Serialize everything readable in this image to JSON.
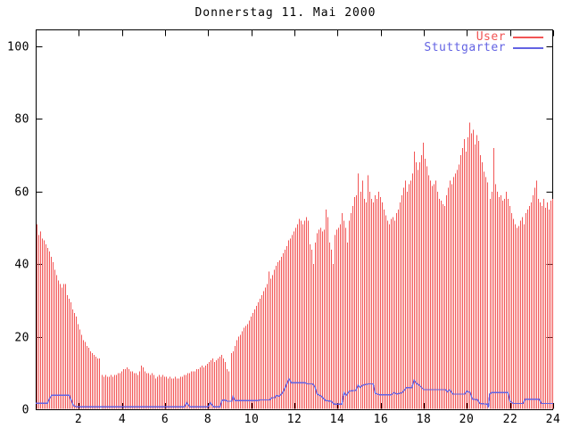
{
  "window": {
    "title": "Donnerstag 11. Mai 2000"
  },
  "colors": {
    "background": "#ffffff",
    "border": "#000000",
    "user_red": "#f25555",
    "stuttgarter_blue": "#6363e3",
    "text": "#000000"
  },
  "chart_data": {
    "type": "bar",
    "title": "Donnerstag 11. Mai 2000",
    "xlabel": "",
    "ylabel": "",
    "grid": false,
    "legend_position": "top-right-inside",
    "x_axis": {
      "min": 0,
      "max": 24,
      "tick_values": [
        2,
        4,
        6,
        8,
        10,
        12,
        14,
        16,
        18,
        20,
        22,
        24
      ],
      "tick_labels": [
        "2",
        "4",
        "6",
        "8",
        "10",
        "12",
        "14",
        "16",
        "18",
        "20",
        "22",
        "24"
      ]
    },
    "y_axis": {
      "min": 0,
      "max": 100,
      "tick_values": [
        0,
        20,
        40,
        60,
        80,
        100
      ],
      "tick_labels": [
        "0",
        "20",
        "40",
        "60",
        "80",
        "100"
      ]
    },
    "legend": {
      "entries": [
        {
          "label": "User",
          "color": "#f25555"
        },
        {
          "label": "Stuttgarter",
          "color": "#6363e3"
        }
      ]
    },
    "series": [
      {
        "name": "User",
        "style": "impulses",
        "color": "#f25555",
        "x_step_hours": 0.0833333,
        "values": [
          51,
          48,
          49,
          47,
          46.5,
          45.5,
          44.5,
          43.5,
          42,
          40.5,
          38.5,
          37,
          35.5,
          34.5,
          33.5,
          34.5,
          34.5,
          31.5,
          30.5,
          29.5,
          27.5,
          26.5,
          25.5,
          23.5,
          22,
          20.5,
          19,
          18.5,
          17.5,
          17,
          16,
          15.5,
          15,
          14.5,
          14,
          14,
          9.5,
          9,
          9.5,
          9,
          9,
          9.5,
          9,
          9.5,
          9.5,
          10,
          10,
          10.5,
          11,
          11,
          11.5,
          11,
          10.5,
          10.5,
          10,
          10,
          9.5,
          10.5,
          12,
          11.5,
          10.5,
          10,
          10,
          9.5,
          10,
          9.5,
          8.5,
          9,
          9.5,
          9,
          9.5,
          9,
          9,
          8.5,
          9,
          8.5,
          8.5,
          9,
          8.5,
          8.5,
          9,
          9,
          9.5,
          9.5,
          10,
          10,
          10.5,
          10.5,
          10.5,
          11,
          11,
          11.5,
          12,
          11.5,
          12,
          12.5,
          13,
          13.5,
          14,
          13,
          13.5,
          14,
          14.5,
          15,
          14,
          13,
          11,
          10.5,
          15.5,
          16,
          17.5,
          19,
          20,
          20.5,
          21.5,
          22.5,
          23,
          23.5,
          24.5,
          25.5,
          26.5,
          27.5,
          28.5,
          29.5,
          30.5,
          31.5,
          32.5,
          33.5,
          34.5,
          38,
          36,
          37,
          38.5,
          39.5,
          40.5,
          41,
          42,
          43,
          44,
          45,
          46.5,
          47,
          48,
          49,
          50,
          51,
          52.5,
          52,
          51,
          52,
          53,
          52,
          45.5,
          44,
          40,
          46,
          48.5,
          49.5,
          50,
          49,
          49.5,
          55,
          53,
          46,
          44,
          40,
          48,
          49.5,
          50,
          51,
          54,
          52,
          50,
          46,
          52,
          54,
          56,
          58.5,
          59,
          65,
          60,
          63,
          58,
          57,
          64.5,
          60,
          58,
          57,
          59,
          58,
          60,
          58.5,
          57,
          55,
          53.5,
          52,
          51,
          52.5,
          53,
          52,
          54,
          55,
          57,
          59,
          61,
          63,
          60,
          62,
          63,
          65,
          71,
          68,
          66,
          68,
          70,
          73.5,
          69,
          67,
          64.5,
          63,
          61.5,
          62,
          63,
          60,
          58,
          57.5,
          56.5,
          56,
          59,
          61,
          63,
          62,
          64,
          65,
          66,
          67.5,
          70,
          72,
          74.5,
          71,
          75,
          79,
          76,
          77,
          73,
          75.5,
          74,
          70,
          68,
          65.5,
          64,
          62.5,
          58,
          60,
          72,
          62,
          60,
          58.5,
          59,
          57.5,
          58,
          60,
          58,
          56,
          54,
          52.5,
          51,
          50,
          50.5,
          52,
          53,
          51,
          54,
          55,
          56,
          57,
          59,
          61,
          63,
          58,
          57,
          56,
          58,
          55.5,
          57,
          55,
          57.5,
          58
        ]
      },
      {
        "name": "Stuttgarter",
        "style": "line",
        "color": "#6363e3",
        "points": [
          [
            0,
            1.7
          ],
          [
            0.55,
            1.7
          ],
          [
            0.6,
            2.5
          ],
          [
            0.75,
            3.9
          ],
          [
            1.55,
            3.9
          ],
          [
            1.65,
            2.5
          ],
          [
            1.75,
            1
          ],
          [
            1.9,
            0.7
          ],
          [
            6.9,
            0.7
          ],
          [
            7.0,
            1.8
          ],
          [
            7.15,
            0.7
          ],
          [
            8.0,
            0.7
          ],
          [
            8.1,
            1.8
          ],
          [
            8.25,
            0.7
          ],
          [
            8.55,
            0.7
          ],
          [
            8.65,
            2.5
          ],
          [
            8.8,
            2.5
          ],
          [
            8.9,
            2.2
          ],
          [
            9.1,
            2.2
          ],
          [
            9.15,
            3.5
          ],
          [
            9.25,
            2.4
          ],
          [
            10.3,
            2.4
          ],
          [
            10.45,
            2.6
          ],
          [
            10.85,
            2.6
          ],
          [
            10.95,
            3.2
          ],
          [
            11.1,
            3.2
          ],
          [
            11.15,
            3.8
          ],
          [
            11.3,
            3.6
          ],
          [
            11.4,
            4.2
          ],
          [
            11.5,
            5
          ],
          [
            11.65,
            7
          ],
          [
            11.75,
            8.4
          ],
          [
            11.85,
            7.3
          ],
          [
            12.5,
            7.3
          ],
          [
            12.6,
            7
          ],
          [
            12.85,
            7
          ],
          [
            12.95,
            6.2
          ],
          [
            13.05,
            4.2
          ],
          [
            13.25,
            3.6
          ],
          [
            13.45,
            2.4
          ],
          [
            13.7,
            2.2
          ],
          [
            13.85,
            1.4
          ],
          [
            14.2,
            1.4
          ],
          [
            14.3,
            4.6
          ],
          [
            14.4,
            3.8
          ],
          [
            14.55,
            5
          ],
          [
            14.85,
            5.2
          ],
          [
            14.95,
            6.6
          ],
          [
            15.05,
            6
          ],
          [
            15.15,
            6.6
          ],
          [
            15.45,
            7
          ],
          [
            15.65,
            7
          ],
          [
            15.75,
            4.4
          ],
          [
            15.95,
            4
          ],
          [
            16.5,
            4
          ],
          [
            16.6,
            4.6
          ],
          [
            16.75,
            4.2
          ],
          [
            17.0,
            4.6
          ],
          [
            17.2,
            6
          ],
          [
            17.45,
            6
          ],
          [
            17.55,
            8
          ],
          [
            17.65,
            7.2
          ],
          [
            17.8,
            6.6
          ],
          [
            18.0,
            5.4
          ],
          [
            19.0,
            5.4
          ],
          [
            19.1,
            4.8
          ],
          [
            19.2,
            5.4
          ],
          [
            19.35,
            4.2
          ],
          [
            19.9,
            4.2
          ],
          [
            20.0,
            5
          ],
          [
            20.15,
            4.6
          ],
          [
            20.25,
            2.8
          ],
          [
            20.5,
            2.6
          ],
          [
            20.6,
            1.6
          ],
          [
            20.95,
            1.4
          ],
          [
            21.0,
            0.5
          ],
          [
            21.05,
            4.2
          ],
          [
            21.15,
            4.6
          ],
          [
            21.9,
            4.6
          ],
          [
            22.0,
            2.2
          ],
          [
            22.15,
            1.6
          ],
          [
            22.6,
            1.6
          ],
          [
            22.7,
            2.8
          ],
          [
            23.35,
            2.8
          ],
          [
            23.45,
            1.6
          ],
          [
            24,
            1.6
          ]
        ]
      }
    ]
  }
}
